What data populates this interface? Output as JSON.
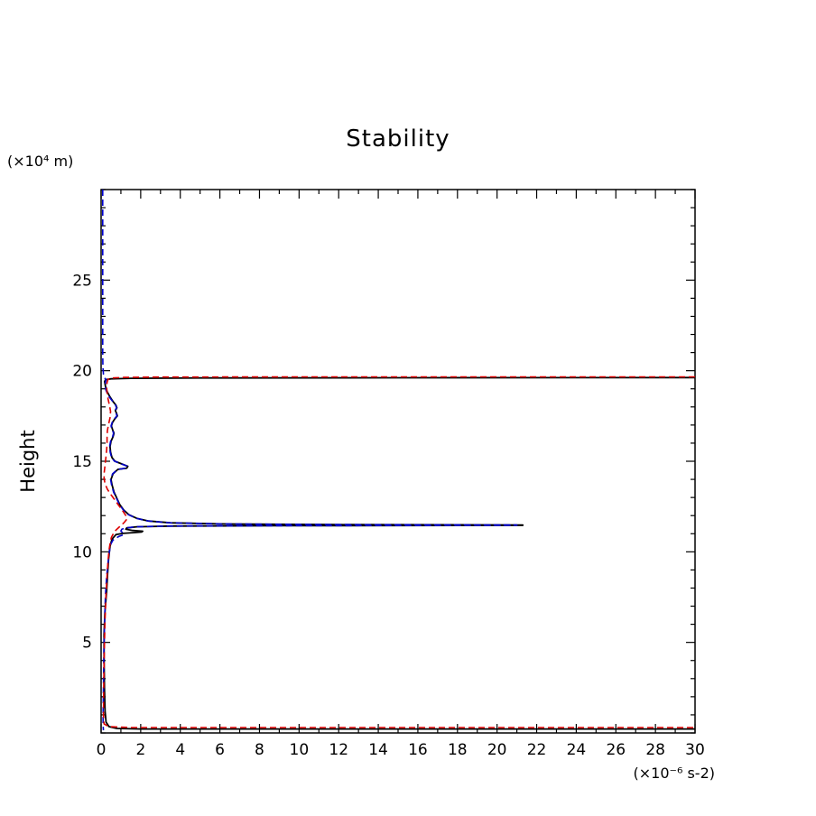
{
  "page": {
    "background": "#ffffff"
  },
  "chart_data": {
    "type": "line",
    "title": "Stability",
    "ylabel": "Height",
    "y_unit_label": "(×10⁴ m)",
    "x_unit_label": "(×10⁻⁶ s-2)",
    "xlim": [
      0,
      30
    ],
    "ylim": [
      0,
      30
    ],
    "x_ticks": [
      0,
      2,
      4,
      6,
      8,
      10,
      12,
      14,
      16,
      18,
      20,
      22,
      24,
      26,
      28,
      30
    ],
    "y_ticks": [
      5,
      10,
      15,
      20,
      25
    ],
    "minor_tick_step_x": 1,
    "minor_tick_step_y": 1,
    "grid": false,
    "legend": false,
    "axis_color": "#000000",
    "series": [
      {
        "name": "black-solid",
        "color": "#000000",
        "dash": null,
        "width": 1.8,
        "points": [
          [
            30,
            0.22
          ],
          [
            2,
            0.22
          ],
          [
            0.8,
            0.25
          ],
          [
            0.4,
            0.35
          ],
          [
            0.25,
            0.6
          ],
          [
            0.2,
            1.2
          ],
          [
            0.17,
            2.5
          ],
          [
            0.15,
            4
          ],
          [
            0.15,
            5.5
          ],
          [
            0.2,
            6.8
          ],
          [
            0.28,
            7.8
          ],
          [
            0.33,
            8.8
          ],
          [
            0.38,
            9.6
          ],
          [
            0.45,
            10.3
          ],
          [
            0.55,
            10.7
          ],
          [
            0.75,
            10.95
          ],
          [
            1.1,
            11.02
          ],
          [
            1.6,
            11.06
          ],
          [
            2.05,
            11.1
          ],
          [
            2.1,
            11.14
          ],
          [
            1.6,
            11.18
          ],
          [
            1.25,
            11.25
          ],
          [
            1.3,
            11.32
          ],
          [
            1.8,
            11.38
          ],
          [
            3.5,
            11.42
          ],
          [
            9,
            11.44
          ],
          [
            21.3,
            11.46
          ],
          [
            21.3,
            11.48
          ],
          [
            12,
            11.5
          ],
          [
            6,
            11.54
          ],
          [
            3.5,
            11.6
          ],
          [
            2.4,
            11.7
          ],
          [
            1.8,
            11.85
          ],
          [
            1.4,
            12.05
          ],
          [
            1.15,
            12.3
          ],
          [
            0.95,
            12.6
          ],
          [
            0.8,
            12.95
          ],
          [
            0.65,
            13.3
          ],
          [
            0.55,
            13.7
          ],
          [
            0.5,
            14.0
          ],
          [
            0.6,
            14.3
          ],
          [
            0.85,
            14.55
          ],
          [
            1.3,
            14.62
          ],
          [
            1.35,
            14.72
          ],
          [
            1.05,
            14.85
          ],
          [
            0.7,
            15.0
          ],
          [
            0.55,
            15.2
          ],
          [
            0.48,
            15.5
          ],
          [
            0.45,
            15.8
          ],
          [
            0.5,
            16.1
          ],
          [
            0.6,
            16.35
          ],
          [
            0.65,
            16.55
          ],
          [
            0.58,
            16.75
          ],
          [
            0.52,
            16.95
          ],
          [
            0.58,
            17.15
          ],
          [
            0.7,
            17.35
          ],
          [
            0.82,
            17.5
          ],
          [
            0.78,
            17.65
          ],
          [
            0.72,
            17.8
          ],
          [
            0.8,
            17.95
          ],
          [
            0.75,
            18.1
          ],
          [
            0.6,
            18.3
          ],
          [
            0.45,
            18.55
          ],
          [
            0.3,
            18.85
          ],
          [
            0.22,
            19.15
          ],
          [
            0.18,
            19.4
          ],
          [
            0.22,
            19.5
          ],
          [
            0.5,
            19.55
          ],
          [
            1.5,
            19.58
          ],
          [
            5,
            19.6
          ],
          [
            15,
            19.61
          ],
          [
            30,
            19.62
          ]
        ]
      },
      {
        "name": "blue-dashed",
        "color": "#0000cc",
        "dash": "7 4",
        "width": 1.6,
        "points": [
          [
            0.08,
            30
          ],
          [
            0.08,
            25
          ],
          [
            0.08,
            21
          ],
          [
            0.09,
            20.2
          ],
          [
            0.12,
            19.8
          ],
          [
            0.18,
            19.6
          ],
          [
            0.25,
            19.5
          ],
          [
            0.22,
            19.35
          ],
          [
            0.2,
            19.15
          ],
          [
            0.25,
            18.9
          ],
          [
            0.38,
            18.6
          ],
          [
            0.55,
            18.35
          ],
          [
            0.72,
            18.12
          ],
          [
            0.78,
            17.95
          ],
          [
            0.7,
            17.8
          ],
          [
            0.76,
            17.65
          ],
          [
            0.8,
            17.5
          ],
          [
            0.68,
            17.35
          ],
          [
            0.56,
            17.15
          ],
          [
            0.5,
            16.95
          ],
          [
            0.56,
            16.75
          ],
          [
            0.63,
            16.55
          ],
          [
            0.58,
            16.35
          ],
          [
            0.48,
            16.1
          ],
          [
            0.43,
            15.8
          ],
          [
            0.46,
            15.5
          ],
          [
            0.53,
            15.2
          ],
          [
            0.68,
            15.0
          ],
          [
            1.03,
            14.85
          ],
          [
            1.33,
            14.72
          ],
          [
            1.28,
            14.62
          ],
          [
            0.83,
            14.55
          ],
          [
            0.58,
            14.3
          ],
          [
            0.48,
            14.0
          ],
          [
            0.53,
            13.7
          ],
          [
            0.63,
            13.3
          ],
          [
            0.78,
            12.95
          ],
          [
            0.93,
            12.6
          ],
          [
            1.13,
            12.3
          ],
          [
            1.38,
            12.05
          ],
          [
            1.78,
            11.85
          ],
          [
            2.38,
            11.7
          ],
          [
            3.48,
            11.6
          ],
          [
            5.98,
            11.54
          ],
          [
            11.98,
            11.5
          ],
          [
            21.0,
            11.48
          ],
          [
            21.0,
            11.46
          ],
          [
            9,
            11.44
          ],
          [
            3.5,
            11.42
          ],
          [
            1.8,
            11.38
          ],
          [
            1.25,
            11.32
          ],
          [
            1.05,
            11.25
          ],
          [
            1.0,
            11.15
          ],
          [
            1.1,
            11.05
          ],
          [
            1.15,
            10.95
          ],
          [
            0.9,
            10.85
          ],
          [
            0.6,
            10.65
          ],
          [
            0.48,
            10.4
          ],
          [
            0.42,
            10.0
          ],
          [
            0.35,
            9.4
          ],
          [
            0.28,
            8.6
          ],
          [
            0.22,
            7.6
          ],
          [
            0.18,
            6.2
          ],
          [
            0.14,
            4.5
          ],
          [
            0.12,
            2.5
          ],
          [
            0.1,
            1.0
          ],
          [
            0.1,
            0.4
          ],
          [
            0.12,
            0.15
          ]
        ]
      },
      {
        "name": "red-dashed",
        "color": "#dd0000",
        "dash": "7 4",
        "width": 1.6,
        "points": [
          [
            30,
            19.66
          ],
          [
            10,
            19.66
          ],
          [
            3,
            19.65
          ],
          [
            1.2,
            19.63
          ],
          [
            0.55,
            19.6
          ],
          [
            0.35,
            19.52
          ],
          [
            0.3,
            19.35
          ],
          [
            0.28,
            19.1
          ],
          [
            0.3,
            18.8
          ],
          [
            0.35,
            18.45
          ],
          [
            0.42,
            18.1
          ],
          [
            0.48,
            17.75
          ],
          [
            0.45,
            17.4
          ],
          [
            0.38,
            17.05
          ],
          [
            0.32,
            16.7
          ],
          [
            0.3,
            16.35
          ],
          [
            0.3,
            16.0
          ],
          [
            0.28,
            15.6
          ],
          [
            0.24,
            15.2
          ],
          [
            0.2,
            14.8
          ],
          [
            0.16,
            14.4
          ],
          [
            0.15,
            14.05
          ],
          [
            0.2,
            13.75
          ],
          [
            0.32,
            13.45
          ],
          [
            0.5,
            13.15
          ],
          [
            0.7,
            12.85
          ],
          [
            0.9,
            12.55
          ],
          [
            1.1,
            12.25
          ],
          [
            1.25,
            12.0
          ],
          [
            1.3,
            11.8
          ],
          [
            1.15,
            11.6
          ],
          [
            0.95,
            11.4
          ],
          [
            0.75,
            11.2
          ],
          [
            0.62,
            11.0
          ],
          [
            0.52,
            10.8
          ],
          [
            0.46,
            10.5
          ],
          [
            0.4,
            10.1
          ],
          [
            0.35,
            9.5
          ],
          [
            0.3,
            8.7
          ],
          [
            0.25,
            7.7
          ],
          [
            0.2,
            6.3
          ],
          [
            0.16,
            4.5
          ],
          [
            0.13,
            2.5
          ],
          [
            0.12,
            1.0
          ],
          [
            0.15,
            0.5
          ],
          [
            0.4,
            0.35
          ],
          [
            1.5,
            0.3
          ],
          [
            6,
            0.3
          ],
          [
            15,
            0.3
          ],
          [
            30,
            0.3
          ]
        ]
      }
    ]
  }
}
